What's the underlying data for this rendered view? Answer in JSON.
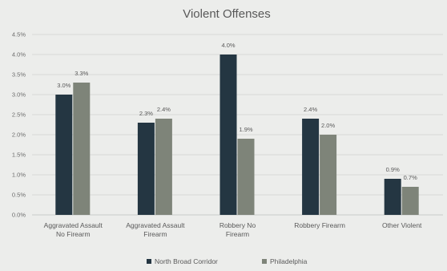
{
  "chart_data": {
    "type": "bar",
    "title": "Violent Offenses",
    "categories": [
      [
        "Aggravated Assault",
        "No Firearm"
      ],
      [
        "Aggravated Assault",
        "Firearm"
      ],
      [
        "Robbery No",
        "Firearm"
      ],
      [
        "Robbery Firearm"
      ],
      [
        "Other Violent"
      ]
    ],
    "series": [
      {
        "name": "North Broad Corridor",
        "values": [
          3.0,
          2.3,
          4.0,
          2.4,
          0.9
        ],
        "labels": [
          "3.0%",
          "2.3%",
          "4.0%",
          "2.4%",
          "0.9%"
        ],
        "color": "#243642"
      },
      {
        "name": "Philadelphia",
        "values": [
          3.3,
          2.4,
          1.9,
          2.0,
          0.7
        ],
        "labels": [
          "3.3%",
          "2.4%",
          "1.9%",
          "2.0%",
          "0.7%"
        ],
        "color": "#7e8479"
      }
    ],
    "ylim": [
      0,
      4.5
    ],
    "yticks": [
      "0.0%",
      "0.5%",
      "1.0%",
      "1.5%",
      "2.0%",
      "2.5%",
      "3.0%",
      "3.5%",
      "4.0%",
      "4.5%"
    ],
    "ytick_values": [
      0,
      0.5,
      1.0,
      1.5,
      2.0,
      2.5,
      3.0,
      3.5,
      4.0,
      4.5
    ],
    "grid": true,
    "legend_position": "bottom"
  }
}
